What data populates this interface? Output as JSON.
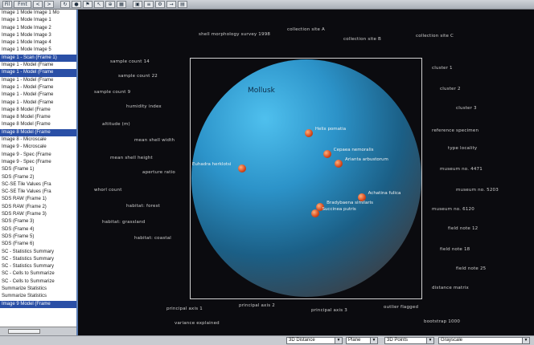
{
  "toolbar": {
    "buttons": [
      {
        "icon": "window-icon",
        "label": "Fil"
      },
      {
        "icon": "text-icon",
        "label": "Fmt"
      },
      {
        "icon": "prev-icon",
        "label": "<"
      },
      {
        "icon": "next-icon",
        "label": ">"
      },
      {
        "icon": "refresh-icon",
        "label": "↻"
      },
      {
        "icon": "record-icon",
        "label": "●"
      },
      {
        "icon": "flag-icon",
        "label": "⚑"
      },
      {
        "icon": "pointer-icon",
        "label": "↖"
      },
      {
        "icon": "zoom-icon",
        "label": "⊕"
      },
      {
        "icon": "grid-icon",
        "label": "▦"
      },
      {
        "icon": "image-icon",
        "label": "▣"
      },
      {
        "icon": "layers-icon",
        "label": "≡"
      },
      {
        "icon": "settings-icon",
        "label": "⚙"
      },
      {
        "icon": "arrow-icon",
        "label": "→"
      },
      {
        "icon": "chart-icon",
        "label": "▤"
      }
    ]
  },
  "left_list": {
    "items": [
      {
        "label": "Image 1 Mode Image 1 Mo",
        "selected": false
      },
      {
        "label": "Image 1 Mode Image 1",
        "selected": false
      },
      {
        "label": "Image 1 Mode Image 2",
        "selected": false
      },
      {
        "label": "Image 1 Mode Image 3",
        "selected": false
      },
      {
        "label": "Image 1 Mode Image 4",
        "selected": false
      },
      {
        "label": "Image 1 Mode Image 5",
        "selected": false
      },
      {
        "label": "Image 1 - Scan (Frame 1)",
        "selected": true
      },
      {
        "label": "Image 1 - Model (Frame",
        "selected": false
      },
      {
        "label": "Image 1 - Model (Frame",
        "selected": true
      },
      {
        "label": "Image 1 - Model (Frame",
        "selected": false
      },
      {
        "label": "Image 1 - Model (Frame",
        "selected": false
      },
      {
        "label": "Image 1 - Model (Frame",
        "selected": false
      },
      {
        "label": "Image 1 - Model (Frame",
        "selected": false
      },
      {
        "label": "Image 8 Model (Frame",
        "selected": false
      },
      {
        "label": "Image 8 Model (Frame",
        "selected": false
      },
      {
        "label": "Image 8 Model (Frame",
        "selected": false
      },
      {
        "label": "Image 8 Model (Frame",
        "selected": true
      },
      {
        "label": "Image 8 - Microscale",
        "selected": false
      },
      {
        "label": "Image 9 - Microscale",
        "selected": false
      },
      {
        "label": "Image 9 - Spec (Frame",
        "selected": false
      },
      {
        "label": "Image 9 - Spec (Frame",
        "selected": false
      },
      {
        "label": "SDS (Frame 1)",
        "selected": false
      },
      {
        "label": "SDS (Frame 2)",
        "selected": false
      },
      {
        "label": "SC-SE Tile Values (Fra",
        "selected": false
      },
      {
        "label": "SC-SE Tile Values (Fra",
        "selected": false
      },
      {
        "label": "SDS RAW (Frame 1)",
        "selected": false
      },
      {
        "label": "SDS RAW (Frame 2)",
        "selected": false
      },
      {
        "label": "SDS RAW (Frame 3)",
        "selected": false
      },
      {
        "label": "SDS (Frame 3)",
        "selected": false
      },
      {
        "label": "SDS (Frame 4)",
        "selected": false
      },
      {
        "label": "SDS (Frame 5)",
        "selected": false
      },
      {
        "label": "SDS (Frame 6)",
        "selected": false
      },
      {
        "label": "SC - Statistics Summary",
        "selected": false
      },
      {
        "label": "SC - Statistics Summary",
        "selected": false
      },
      {
        "label": "SC - Statistics Summary",
        "selected": false
      },
      {
        "label": "SC - Cells to Summarize",
        "selected": false
      },
      {
        "label": "SC - Cells to Summarize",
        "selected": false
      },
      {
        "label": "Summarize Statistics",
        "selected": false
      },
      {
        "label": "Summarize Statistics",
        "selected": false
      },
      {
        "label": "Image 9 Model (Frame",
        "selected": true
      }
    ]
  },
  "plot": {
    "title": "Mollusk",
    "markers": [
      {
        "label": "Euhadra herklotsi",
        "x": 0.22,
        "y": 0.46
      },
      {
        "label": "Helix pomatia",
        "x": 0.51,
        "y": 0.31
      },
      {
        "label": "Cepaea nemoralis",
        "x": 0.59,
        "y": 0.4
      },
      {
        "label": "Arianta arbustorum",
        "x": 0.64,
        "y": 0.44
      },
      {
        "label": "Achatina fulica",
        "x": 0.74,
        "y": 0.58
      },
      {
        "label": "Bradybaena similaris",
        "x": 0.56,
        "y": 0.62
      },
      {
        "label": "Succinea putris",
        "x": 0.54,
        "y": 0.65
      }
    ]
  },
  "annotations": [
    "shell morphology survey 1998",
    "collection site A",
    "collection site B",
    "collection site C",
    "sample count 14",
    "sample count 22",
    "sample count 9",
    "humidity index",
    "altitude (m)",
    "mean shell width",
    "mean shell height",
    "aperture ratio",
    "whorl count",
    "habitat: forest",
    "habitat: grassland",
    "habitat: coastal",
    "cluster 1",
    "cluster 2",
    "cluster 3",
    "reference specimen",
    "type locality",
    "museum no. 4471",
    "museum no. 5203",
    "museum no. 6120",
    "field note 12",
    "field note 18",
    "field note 25",
    "distance matrix",
    "principal axis 1",
    "principal axis 2",
    "principal axis 3",
    "outlier flagged",
    "variance explained",
    "bootstrap 1000"
  ],
  "status_bar": {
    "dropdowns": [
      {
        "name": "layout-select",
        "value": "3D Distance"
      },
      {
        "name": "view-select",
        "value": "Plane"
      },
      {
        "name": "render-select",
        "value": "3D Points"
      },
      {
        "name": "color-select",
        "value": "Grayscale"
      }
    ]
  },
  "colors": {
    "background": "#0b0b0f",
    "sphere": "#2c93c9",
    "marker": "#d5461a",
    "selection": "#2a4fa6"
  }
}
